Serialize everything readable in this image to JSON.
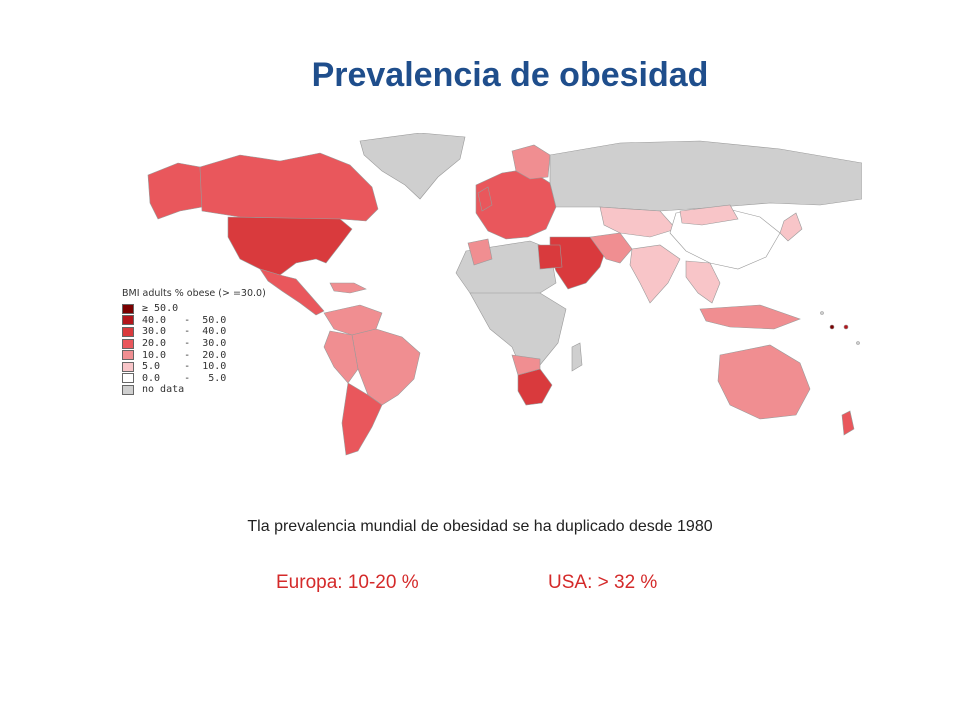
{
  "title": "Prevalencia de obesidad",
  "legend": {
    "title": "BMI adults % obese (> =30.0)",
    "items": [
      {
        "label": "≥ 50.0",
        "color": "#7a0000"
      },
      {
        "label": "40.0   -  50.0",
        "color": "#b3161c"
      },
      {
        "label": "30.0   -  40.0",
        "color": "#d93a3d"
      },
      {
        "label": "20.0   -  30.0",
        "color": "#e9575c"
      },
      {
        "label": "10.0   -  20.0",
        "color": "#f08e91"
      },
      {
        "label": "5.0    -  10.0",
        "color": "#f8c5c8"
      },
      {
        "label": "0.0    -   5.0",
        "color": "#ffffff"
      },
      {
        "label": "no data",
        "color": "#cfcfcf"
      }
    ]
  },
  "caption": "Tla prevalencia mundial de obesidad se ha duplicado desde 1980",
  "stats": {
    "europe": "Europa: 10-20 %",
    "usa": "USA: > 32 %"
  }
}
